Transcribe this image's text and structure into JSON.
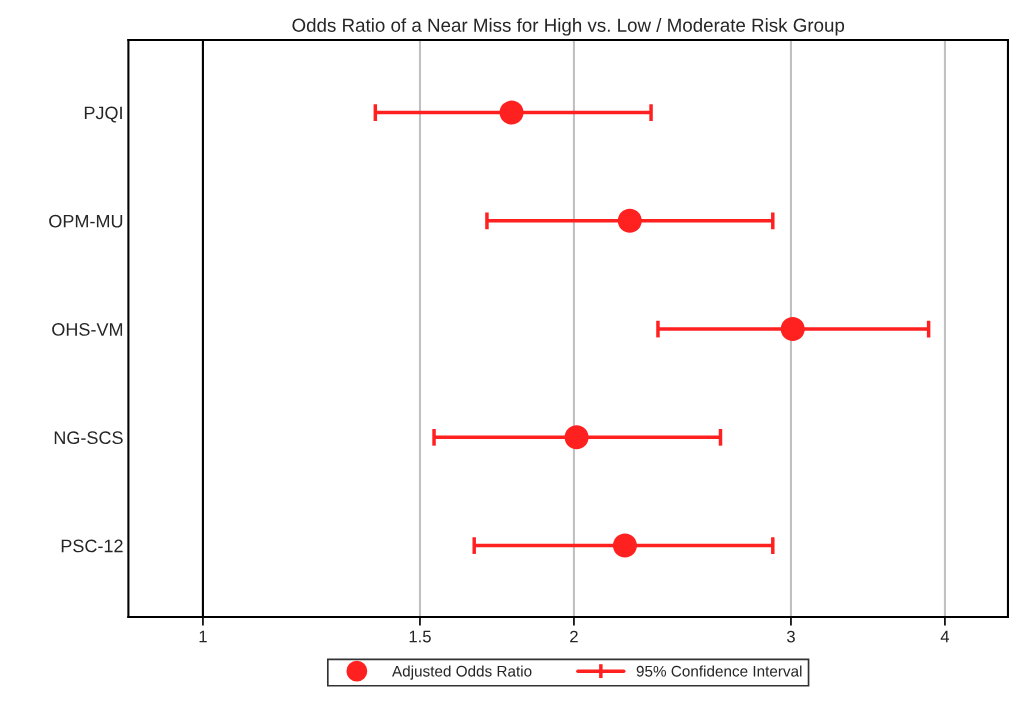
{
  "chart_data": {
    "type": "scatter",
    "orientation": "horizontal",
    "title": "Odds Ratio of a Near Miss for High vs. Low / Moderate Risk Group",
    "categories": [
      "PJQI",
      "OPM-MU",
      "OHS-VM",
      "NG-SCS",
      "PSC-12"
    ],
    "series": [
      {
        "name": "Adjusted Odds Ratio",
        "color": "#ff2020",
        "values": [
          1.78,
          2.22,
          3.01,
          2.01,
          2.2
        ],
        "errors": [
          [
            1.38,
            2.31
          ],
          [
            1.7,
            2.9
          ],
          [
            2.34,
            3.88
          ],
          [
            1.54,
            2.63
          ],
          [
            1.66,
            2.9
          ]
        ]
      }
    ],
    "log": "x",
    "xlim": [
      0.87,
      4.5
    ],
    "xticks": [
      1,
      1.5,
      2,
      3,
      4
    ],
    "grid": "x",
    "ref_lines": [
      {
        "axis": "x",
        "value": 1,
        "color": "#000000"
      }
    ],
    "marker": "circle",
    "legend": "bottom",
    "annotations": [
      "95% Confidence Interval"
    ]
  }
}
